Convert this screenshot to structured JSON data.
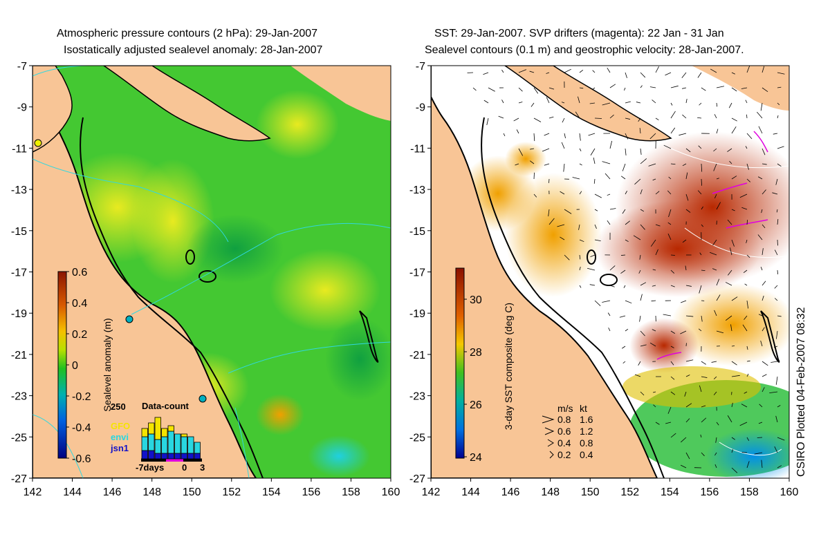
{
  "left_panel": {
    "title_line1": "Atmospheric pressure contours (2 hPa): 29-Jan-2007",
    "title_line2": "Isostatically adjusted sealevel anomaly: 28-Jan-2007",
    "colorbar": {
      "label": "Sealevel anomaly (m)",
      "ticks": [
        "0.6",
        "0.4",
        "0.2",
        "0",
        "-0.2",
        "-0.4",
        "-0.6"
      ]
    },
    "data_count": {
      "title": "Data-count",
      "max_label": "250",
      "legend": [
        {
          "label": "GFO",
          "color": "#f5e400"
        },
        {
          "label": "envi",
          "color": "#29d6e0"
        },
        {
          "label": "jsn1",
          "color": "#1212c8"
        }
      ],
      "x_labels": [
        "-7days",
        "0",
        "3"
      ],
      "bars": [
        {
          "jsn1": 0.15,
          "envi": 0.25,
          "gfo": 0.15
        },
        {
          "jsn1": 0.15,
          "envi": 0.3,
          "gfo": 0.2
        },
        {
          "jsn1": 0.1,
          "envi": 0.25,
          "gfo": 0.4
        },
        {
          "jsn1": 0.1,
          "envi": 0.3,
          "gfo": 0.15
        },
        {
          "jsn1": 0.1,
          "envi": 0.4,
          "gfo": 0.1
        },
        {
          "jsn1": 0.1,
          "envi": 0.35,
          "gfo": 0.0
        },
        {
          "jsn1": 0.1,
          "envi": 0.3,
          "gfo": 0.05
        },
        {
          "jsn1": 0.1,
          "envi": 0.3,
          "gfo": 0.0
        },
        {
          "jsn1": 0.1,
          "envi": 0.2,
          "gfo": 0.0
        }
      ]
    }
  },
  "right_panel": {
    "title_line1": "SST: 29-Jan-2007. SVP drifters (magenta): 22 Jan - 31 Jan",
    "title_line2": "Sealevel contours (0.1 m) and geostrophic velocity: 28-Jan-2007.",
    "colorbar": {
      "label": "3-day SST composite (deg C)",
      "ticks": [
        "30",
        "28",
        "26",
        "24"
      ]
    },
    "velocity_legend": {
      "header_ms": "m/s",
      "header_kt": "kt",
      "rows": [
        {
          "ms": "0.8",
          "kt": "1.6"
        },
        {
          "ms": "0.6",
          "kt": "1.2"
        },
        {
          "ms": "0.4",
          "kt": "0.8"
        },
        {
          "ms": "0.2",
          "kt": "0.4"
        }
      ]
    }
  },
  "axes": {
    "lat_ticks": [
      "-7",
      "-9",
      "-11",
      "-13",
      "-15",
      "-17",
      "-19",
      "-21",
      "-23",
      "-25",
      "-27"
    ],
    "lon_ticks": [
      "142",
      "144",
      "146",
      "148",
      "150",
      "152",
      "154",
      "156",
      "158",
      "160"
    ]
  },
  "stamp": "CSIRO Plotted 04-Feb-2007 08:32",
  "colors": {
    "land": "#f8c596",
    "coast": "#000000",
    "anomaly_green": "#30c030",
    "sst_hot": "#c83c00",
    "drifter": "#e000e0"
  }
}
